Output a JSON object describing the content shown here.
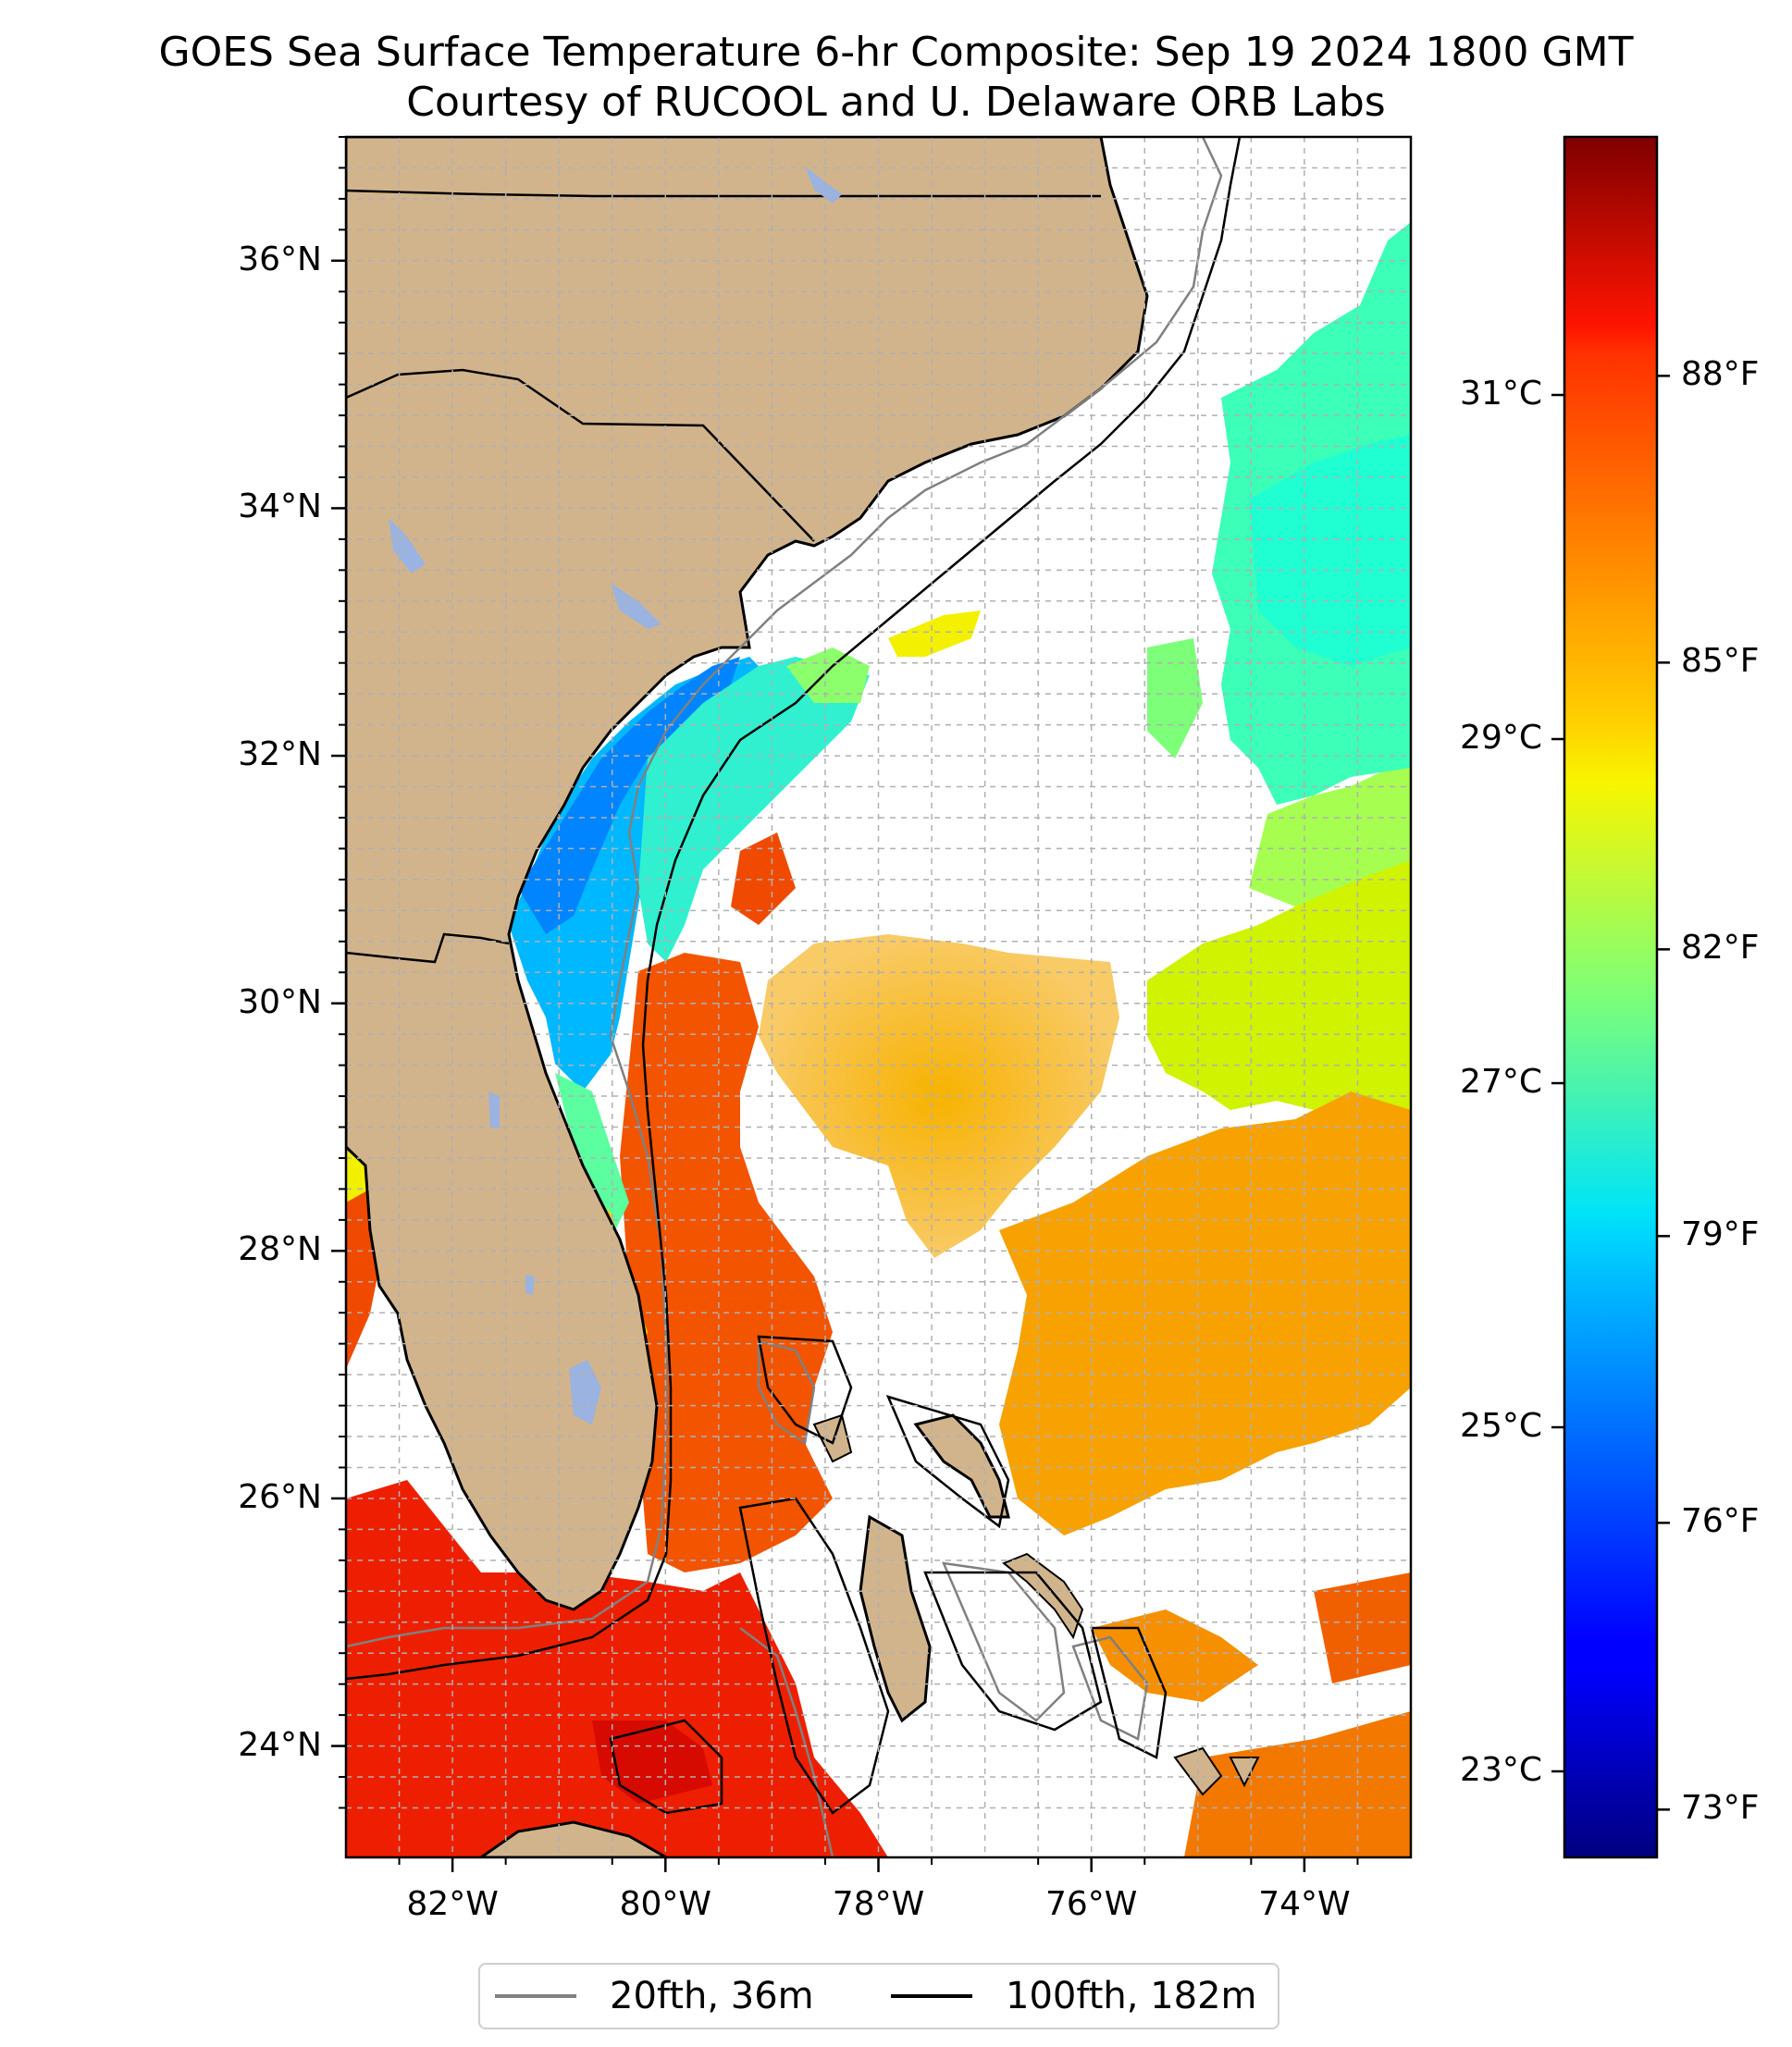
{
  "title": "GOES Sea Surface Temperature 6-hr Composite: Sep 19 2024 1800 GMT",
  "subtitle": "Courtesy of RUCOOL and U. Delaware ORB Labs",
  "map": {
    "lat_labels": [
      "36°N",
      "34°N",
      "32°N",
      "30°N",
      "28°N",
      "26°N",
      "24°N"
    ],
    "lon_labels": [
      "82°W",
      "80°W",
      "78°W",
      "76°W",
      "74°W"
    ],
    "extent": {
      "lon_min": -83.0,
      "lon_max": -73.0,
      "lat_min": 23.1,
      "lat_max": 37.0
    },
    "land_color": "#d2b48c",
    "lake_color": "#9ab3e0",
    "grid": true
  },
  "colorbar": {
    "colormap": "jet",
    "celsius_labels": [
      "31°C",
      "29°C",
      "27°C",
      "25°C",
      "23°C"
    ],
    "fahrenheit_labels": [
      "88°F",
      "85°F",
      "82°F",
      "79°F",
      "76°F",
      "73°F"
    ],
    "range_f": [
      72.5,
      90.5
    ]
  },
  "legend": {
    "items": [
      {
        "label": "20fth, 36m",
        "color": "#808080"
      },
      {
        "label": "100fth, 182m",
        "color": "#000000"
      }
    ]
  }
}
